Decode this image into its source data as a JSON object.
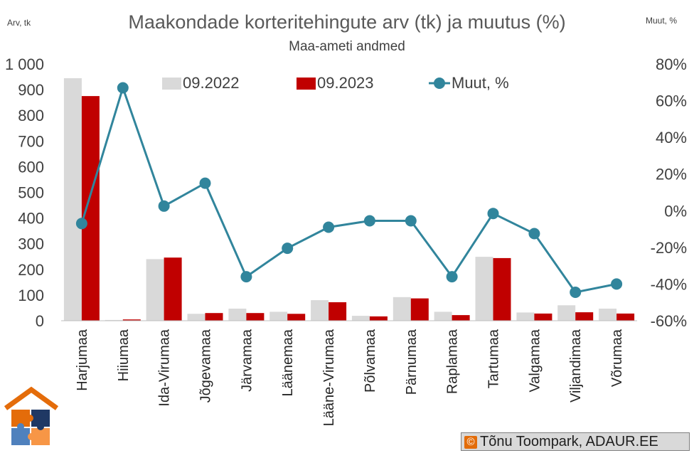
{
  "chart_data": {
    "type": "bar",
    "title": "Maakondade korteritehingute arv (tk) ja muutus (%)",
    "subtitle": "Maa-ameti andmed",
    "ylabel_left": "Arv, tk",
    "ylabel_right": "Muut, %",
    "ylim_left": [
      0,
      1000
    ],
    "ylim_right": [
      -60,
      80
    ],
    "yticks_left": [
      "0",
      "100",
      "200",
      "300",
      "400",
      "500",
      "600",
      "700",
      "800",
      "900",
      "1 000"
    ],
    "yticks_right": [
      "-60%",
      "-40%",
      "-20%",
      "0%",
      "20%",
      "40%",
      "60%",
      "80%"
    ],
    "categories": [
      "Harjumaa",
      "Hiiumaa",
      "Ida-Virumaa",
      "Jõgevamaa",
      "Järvamaa",
      "Läänemaa",
      "Lääne-Virumaa",
      "Põlvamaa",
      "Pärnumaa",
      "Raplamaa",
      "Tartumaa",
      "Valgamaa",
      "Viljandimaa",
      "Võrumaa"
    ],
    "series": [
      {
        "name": "09.2022",
        "type": "bar",
        "axis": "left",
        "color": "#d9d9d9",
        "values": [
          945,
          3,
          240,
          27,
          47,
          35,
          80,
          19,
          92,
          35,
          249,
          32,
          60,
          47
        ]
      },
      {
        "name": "09.2023",
        "type": "bar",
        "axis": "left",
        "color": "#c00000",
        "values": [
          875,
          5,
          246,
          30,
          30,
          27,
          72,
          17,
          87,
          22,
          244,
          28,
          33,
          28
        ]
      },
      {
        "name": "Muut, %",
        "type": "line",
        "axis": "right",
        "color": "#31859c",
        "values": [
          -7,
          67,
          2.5,
          15,
          -36,
          -20.5,
          -9,
          -5.5,
          -5.5,
          -36,
          -1.5,
          -12.5,
          -44.5,
          -40
        ]
      }
    ],
    "legend_position": "top",
    "grid": false
  },
  "credit": {
    "symbol": "©",
    "text": "Tõnu Toompark, ADAUR.EE"
  },
  "logo": {
    "icon": "house-puzzle-logo-icon",
    "colors": [
      "#e46c0a",
      "#4f81bd",
      "#1f3864",
      "#f79646"
    ]
  }
}
